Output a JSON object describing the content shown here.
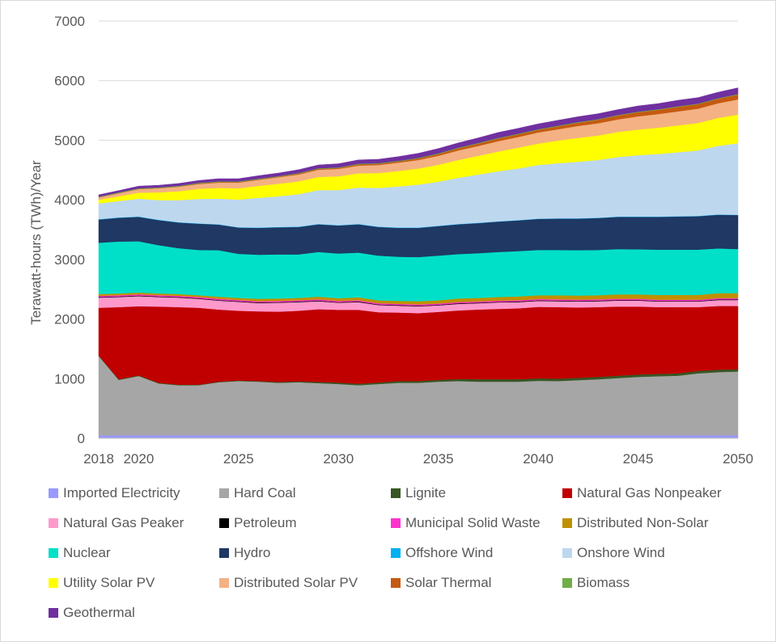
{
  "chart_data": {
    "type": "area",
    "stacked": true,
    "title": "",
    "xlabel": "",
    "ylabel": "Terawatt-hours (TWh)/Year",
    "x": [
      2018,
      2019,
      2020,
      2021,
      2022,
      2023,
      2024,
      2025,
      2026,
      2027,
      2028,
      2029,
      2030,
      2031,
      2032,
      2033,
      2034,
      2035,
      2036,
      2037,
      2038,
      2039,
      2040,
      2041,
      2042,
      2043,
      2044,
      2045,
      2046,
      2047,
      2048,
      2049,
      2050
    ],
    "xlim": [
      2018,
      2050
    ],
    "ylim": [
      0,
      7000
    ],
    "x_ticks": [
      2018,
      2020,
      2025,
      2030,
      2035,
      2040,
      2045,
      2050
    ],
    "y_ticks": [
      0,
      1000,
      2000,
      3000,
      4000,
      5000,
      6000,
      7000
    ],
    "grid": "horizontal",
    "legend_position": "bottom",
    "series": [
      {
        "name": "Imported Electricity",
        "color": "#9999ff",
        "values": [
          50,
          50,
          50,
          50,
          50,
          50,
          50,
          50,
          50,
          50,
          50,
          50,
          50,
          50,
          50,
          50,
          50,
          50,
          50,
          50,
          50,
          50,
          50,
          50,
          50,
          50,
          50,
          50,
          50,
          50,
          50,
          50,
          50
        ]
      },
      {
        "name": "Hard Coal",
        "color": "#a6a6a6",
        "values": [
          1330,
          930,
          995,
          870,
          840,
          840,
          890,
          910,
          900,
          880,
          890,
          875,
          860,
          840,
          860,
          880,
          880,
          900,
          910,
          900,
          900,
          900,
          915,
          910,
          925,
          940,
          960,
          980,
          990,
          1000,
          1040,
          1060,
          1070
        ]
      },
      {
        "name": "Lignite",
        "color": "#375623",
        "values": [
          10,
          10,
          10,
          10,
          10,
          10,
          10,
          10,
          10,
          15,
          15,
          20,
          25,
          25,
          25,
          30,
          30,
          30,
          35,
          40,
          40,
          40,
          40,
          40,
          40,
          40,
          40,
          40,
          40,
          40,
          40,
          40,
          40
        ]
      },
      {
        "name": "Natural Gas Nonpeaker",
        "color": "#c00000",
        "values": [
          800,
          1210,
          1160,
          1280,
          1300,
          1290,
          1210,
          1170,
          1170,
          1180,
          1185,
          1220,
          1220,
          1240,
          1180,
          1150,
          1140,
          1140,
          1150,
          1170,
          1180,
          1190,
          1200,
          1200,
          1180,
          1170,
          1160,
          1140,
          1120,
          1110,
          1070,
          1070,
          1060
        ]
      },
      {
        "name": "Natural Gas Peaker",
        "color": "#ff99cc",
        "values": [
          170,
          170,
          170,
          160,
          160,
          150,
          150,
          150,
          140,
          150,
          145,
          135,
          120,
          130,
          120,
          115,
          115,
          110,
          110,
          105,
          110,
          105,
          100,
          100,
          100,
          100,
          100,
          100,
          95,
          95,
          95,
          100,
          100
        ]
      },
      {
        "name": "Petroleum",
        "color": "#000000",
        "values": [
          10,
          10,
          10,
          10,
          10,
          10,
          10,
          10,
          10,
          10,
          10,
          10,
          10,
          10,
          10,
          10,
          10,
          10,
          10,
          10,
          10,
          10,
          10,
          10,
          10,
          10,
          10,
          10,
          10,
          10,
          10,
          10,
          10
        ]
      },
      {
        "name": "Municipal Solid Waste",
        "color": "#ff33cc",
        "values": [
          20,
          20,
          20,
          20,
          20,
          20,
          20,
          20,
          20,
          20,
          20,
          20,
          20,
          20,
          20,
          20,
          20,
          20,
          20,
          20,
          20,
          20,
          20,
          20,
          20,
          20,
          20,
          20,
          20,
          20,
          20,
          20,
          20
        ]
      },
      {
        "name": "Distributed Non-Solar",
        "color": "#bf9000",
        "values": [
          30,
          30,
          30,
          30,
          30,
          30,
          35,
          35,
          40,
          40,
          40,
          45,
          45,
          50,
          50,
          50,
          55,
          55,
          60,
          60,
          60,
          65,
          65,
          70,
          70,
          70,
          75,
          75,
          80,
          80,
          80,
          85,
          85
        ]
      },
      {
        "name": "Nuclear",
        "color": "#00e0c8",
        "values": [
          860,
          870,
          860,
          810,
          770,
          760,
          780,
          740,
          740,
          740,
          730,
          750,
          750,
          750,
          750,
          740,
          740,
          750,
          745,
          750,
          755,
          760,
          760,
          760,
          760,
          760,
          760,
          755,
          760,
          760,
          760,
          750,
          740
        ]
      },
      {
        "name": "Hydro",
        "color": "#1f3864",
        "values": [
          390,
          400,
          410,
          420,
          430,
          440,
          430,
          440,
          450,
          455,
          460,
          465,
          470,
          475,
          480,
          485,
          490,
          495,
          500,
          505,
          510,
          515,
          520,
          525,
          530,
          535,
          540,
          545,
          550,
          555,
          560,
          565,
          570
        ]
      },
      {
        "name": "Offshore Wind",
        "color": "#00b0f0",
        "values": [
          5,
          5,
          5,
          5,
          5,
          5,
          5,
          5,
          5,
          5,
          5,
          5,
          5,
          5,
          5,
          5,
          5,
          5,
          5,
          5,
          5,
          5,
          5,
          5,
          5,
          5,
          5,
          5,
          5,
          5,
          5,
          5,
          5
        ]
      },
      {
        "name": "Onshore Wind",
        "color": "#bdd7ee",
        "values": [
          265,
          275,
          300,
          330,
          370,
          410,
          430,
          465,
          500,
          515,
          545,
          570,
          590,
          610,
          650,
          690,
          720,
          740,
          775,
          810,
          840,
          865,
          900,
          925,
          950,
          970,
          1000,
          1030,
          1050,
          1075,
          1100,
          1150,
          1200
        ]
      },
      {
        "name": "Utility Solar PV",
        "color": "#ffff00",
        "values": [
          60,
          80,
          100,
          130,
          150,
          170,
          180,
          190,
          200,
          210,
          215,
          220,
          230,
          240,
          250,
          260,
          270,
          285,
          300,
          315,
          330,
          350,
          360,
          380,
          400,
          410,
          420,
          430,
          440,
          450,
          460,
          470,
          480
        ]
      },
      {
        "name": "Distributed Solar PV",
        "color": "#f4b183",
        "values": [
          40,
          50,
          60,
          70,
          75,
          80,
          90,
          95,
          100,
          110,
          115,
          120,
          125,
          130,
          135,
          140,
          145,
          150,
          160,
          165,
          175,
          180,
          185,
          190,
          200,
          205,
          210,
          220,
          230,
          235,
          240,
          245,
          255
        ]
      },
      {
        "name": "Solar Thermal",
        "color": "#c55a11",
        "values": [
          5,
          5,
          5,
          5,
          5,
          10,
          10,
          10,
          10,
          10,
          15,
          15,
          15,
          20,
          20,
          20,
          25,
          30,
          35,
          40,
          45,
          45,
          45,
          50,
          55,
          60,
          65,
          70,
          70,
          75,
          75,
          75,
          80
        ]
      },
      {
        "name": "Biomass",
        "color": "#70ad47",
        "values": [
          10,
          10,
          10,
          10,
          10,
          10,
          10,
          10,
          10,
          10,
          10,
          10,
          10,
          10,
          10,
          10,
          10,
          10,
          10,
          10,
          10,
          10,
          10,
          10,
          10,
          10,
          10,
          10,
          10,
          10,
          10,
          10,
          10
        ]
      },
      {
        "name": "Geothermal",
        "color": "#7030a0",
        "values": [
          30,
          30,
          35,
          35,
          40,
          40,
          45,
          45,
          50,
          50,
          55,
          55,
          60,
          65,
          65,
          70,
          75,
          80,
          80,
          85,
          90,
          90,
          90,
          90,
          90,
          90,
          90,
          95,
          95,
          100,
          100,
          100,
          105
        ]
      }
    ]
  }
}
